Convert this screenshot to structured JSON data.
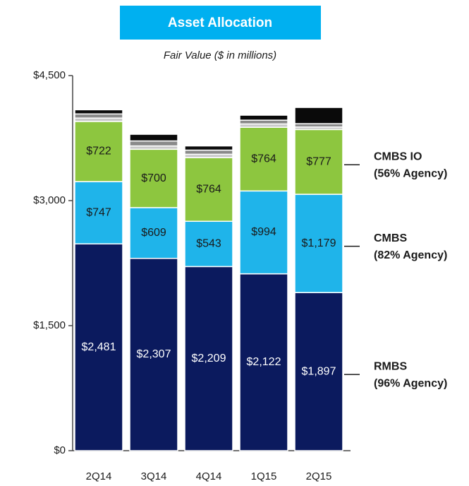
{
  "chart_data": {
    "type": "stacked_bar",
    "title": "Asset Allocation",
    "subtitle": "Fair Value ($ in millions)",
    "categories": [
      "2Q14",
      "3Q14",
      "4Q14",
      "1Q15",
      "2Q15"
    ],
    "series": [
      {
        "name": "RMBS",
        "note": "(96% Agency)",
        "color": "#0b1a5e",
        "label_color": "#ffffff",
        "values": [
          2481,
          2307,
          2209,
          2122,
          1897
        ],
        "value_labels": [
          "$2,481",
          "$2,307",
          "$2,209",
          "$2,122",
          "$1,897"
        ]
      },
      {
        "name": "CMBS",
        "note": "(82% Agency)",
        "color": "#1fb4ea",
        "label_color": "#1a1a1a",
        "values": [
          747,
          609,
          543,
          994,
          1179
        ],
        "value_labels": [
          "$747",
          "$609",
          "$543",
          "$994",
          "$1,179"
        ]
      },
      {
        "name": "CMBS IO",
        "note": "(56% Agency)",
        "color": "#8dc63f",
        "label_color": "#1a1a1a",
        "values": [
          722,
          700,
          764,
          764,
          777
        ],
        "value_labels": [
          "$722",
          "$700",
          "$764",
          "$764",
          "$777"
        ]
      },
      {
        "color": "#c9c9c9",
        "values": [
          40,
          40,
          40,
          40,
          30
        ]
      },
      {
        "color": "#8a8a8a",
        "values": [
          50,
          60,
          50,
          45,
          40
        ]
      },
      {
        "color": "#0a0a0a",
        "values": [
          50,
          80,
          50,
          60,
          195
        ]
      }
    ],
    "ylim": [
      0,
      4500
    ],
    "yticks": [
      {
        "value": 0,
        "label": "$0"
      },
      {
        "value": 1500,
        "label": "$1,500"
      },
      {
        "value": 3000,
        "label": "$3,000"
      },
      {
        "value": 4500,
        "label": "$4,500"
      }
    ]
  }
}
